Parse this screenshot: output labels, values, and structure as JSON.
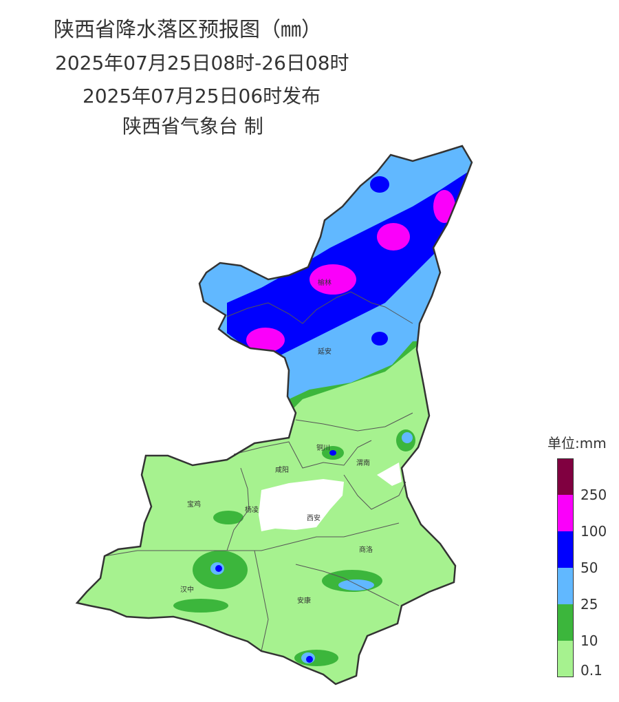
{
  "titles": {
    "main": "陕西省降水落区预报图（㎜）",
    "period": "2025年07月25日08时-26日08时",
    "issued": "2025年07月25日06时发布",
    "producer": "陕西省气象台 制"
  },
  "cities": {
    "yulin": "榆林",
    "yanan": "延安",
    "tongchuan": "铜川",
    "weinan": "渭南",
    "xianyang": "咸阳",
    "baoji": "宝鸡",
    "yangling": "杨凌",
    "xian": "西安",
    "shangluo": "商洛",
    "hanzhong": "汉中",
    "ankang": "安康"
  },
  "legend": {
    "title": "单位:mm",
    "levels": [
      {
        "label": "250",
        "color": "#800040"
      },
      {
        "label": "100",
        "color": "#fa00fa"
      },
      {
        "label": "50",
        "color": "#0000fe"
      },
      {
        "label": "25",
        "color": "#61b8ff"
      },
      {
        "label": "10",
        "color": "#3cb63c"
      },
      {
        "label": "0.1",
        "color": "#a6f28f"
      }
    ]
  }
}
